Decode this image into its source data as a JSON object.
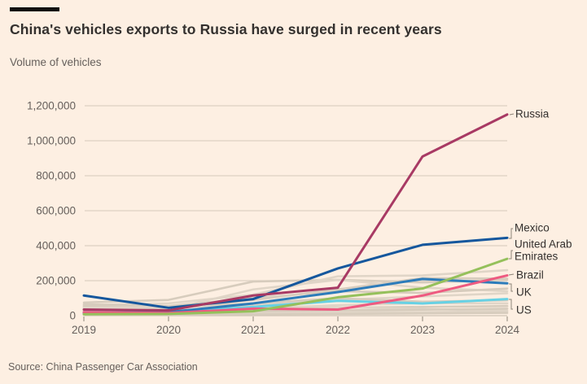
{
  "header": {
    "title": "China's vehicles exports to Russia have surged in recent years",
    "subtitle": "Volume of vehicles"
  },
  "source": "Source: China Passenger Car Association",
  "colors": {
    "background": "#fdefe2",
    "title_text": "#33302e",
    "muted_text": "#66605c",
    "gridline": "#ddd1c3",
    "zero_line": "#cfc4b6",
    "tick": "#8d8478",
    "leader_line": "#8d8478",
    "background_line_a": "#d7ccbd",
    "background_line_b": "#e0d5c7"
  },
  "chart_data": {
    "type": "line",
    "title": "China's vehicles exports to Russia have surged in recent years",
    "ylabel": "Volume of vehicles",
    "xlabel": "",
    "x": [
      2019,
      2020,
      2021,
      2022,
      2023,
      2024
    ],
    "x_tick_labels": [
      "2019",
      "2020",
      "2021",
      "2022",
      "2023",
      "2024"
    ],
    "y_ticks": [
      0,
      200000,
      400000,
      600000,
      800000,
      1000000,
      1200000
    ],
    "y_tick_labels": [
      "0",
      "200,000",
      "400,000",
      "600,000",
      "800,000",
      "1,000,000",
      "1,200,000"
    ],
    "ylim": [
      0,
      1260000
    ],
    "grid": "horizontal",
    "legend_position": "right-of-line-ends",
    "series": [
      {
        "name": "Russia",
        "label_lines": [
          "Russia"
        ],
        "color": "#a83a64",
        "values": [
          35000,
          30000,
          115000,
          160000,
          910000,
          1150000
        ]
      },
      {
        "name": "Mexico",
        "label_lines": [
          "Mexico"
        ],
        "color": "#15579d",
        "values": [
          115000,
          45000,
          95000,
          270000,
          405000,
          445000
        ]
      },
      {
        "name": "United Arab Emirates",
        "label_lines": [
          "United Arab",
          "Emirates"
        ],
        "color": "#95c05b",
        "values": [
          8000,
          10000,
          25000,
          105000,
          155000,
          325000
        ]
      },
      {
        "name": "Brazil",
        "label_lines": [
          "Brazil"
        ],
        "color": "#ee5a80",
        "values": [
          20000,
          15000,
          40000,
          35000,
          115000,
          230000
        ]
      },
      {
        "name": "UK",
        "label_lines": [
          "UK"
        ],
        "color": "#2d7cba",
        "values": [
          15000,
          20000,
          70000,
          135000,
          210000,
          185000
        ]
      },
      {
        "name": "US",
        "label_lines": [
          "US"
        ],
        "color": "#67d1e4",
        "values": [
          20000,
          18000,
          50000,
          85000,
          70000,
          95000
        ]
      }
    ],
    "background_series": [
      {
        "values": [
          75000,
          90000,
          195000,
          205000,
          190000,
          205000
        ]
      },
      {
        "values": [
          60000,
          70000,
          120000,
          225000,
          230000,
          260000
        ]
      },
      {
        "values": [
          50000,
          40000,
          90000,
          150000,
          215000,
          212000
        ]
      },
      {
        "values": [
          40000,
          35000,
          150000,
          205000,
          160000,
          140000
        ]
      },
      {
        "values": [
          65000,
          55000,
          100000,
          140000,
          130000,
          155000
        ]
      },
      {
        "values": [
          30000,
          25000,
          60000,
          90000,
          110000,
          128000
        ]
      },
      {
        "values": [
          55000,
          45000,
          70000,
          100000,
          80000,
          88000
        ]
      },
      {
        "values": [
          25000,
          20000,
          40000,
          60000,
          72000,
          70000
        ]
      },
      {
        "values": [
          20000,
          15000,
          30000,
          45000,
          50000,
          55000
        ]
      },
      {
        "values": [
          45000,
          50000,
          55000,
          48000,
          38000,
          28000
        ]
      },
      {
        "values": [
          15000,
          10000,
          20000,
          30000,
          34000,
          40000
        ]
      },
      {
        "values": [
          10000,
          8000,
          14000,
          20000,
          20000,
          24000
        ]
      },
      {
        "values": [
          5000,
          5000,
          8000,
          10000,
          13000,
          16000
        ]
      }
    ]
  }
}
